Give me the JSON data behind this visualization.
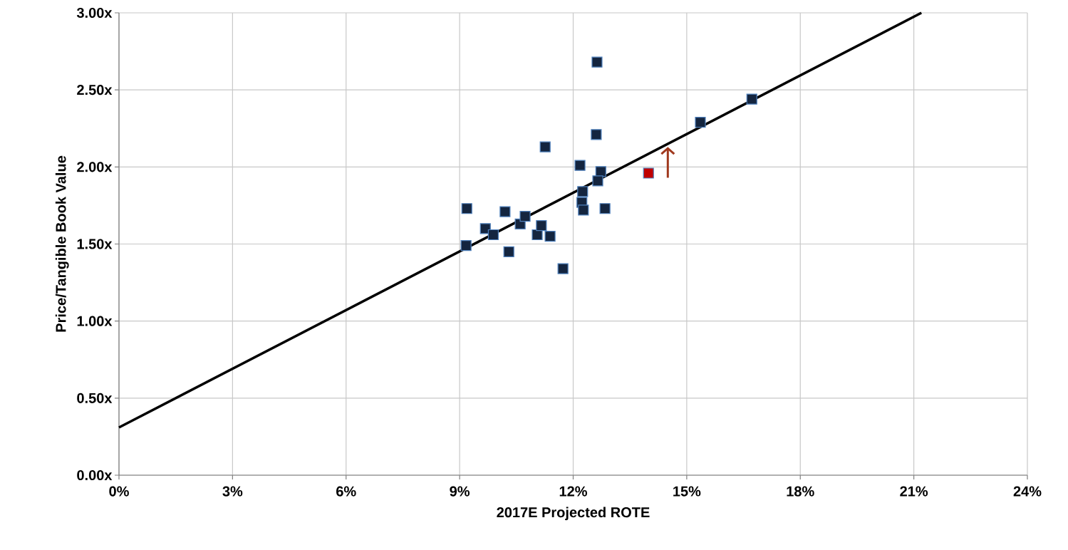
{
  "chart_data": {
    "type": "scatter",
    "xlabel": "2017E  Projected ROTE",
    "ylabel": "Price/Tangible  Book Value",
    "xlim": [
      0,
      24
    ],
    "xticks": [
      {
        "value": 0,
        "label": "0%"
      },
      {
        "value": 3,
        "label": "3%"
      },
      {
        "value": 6,
        "label": "6%"
      },
      {
        "value": 9,
        "label": "9%"
      },
      {
        "value": 12,
        "label": "12%"
      },
      {
        "value": 15,
        "label": "15%"
      },
      {
        "value": 18,
        "label": "18%"
      },
      {
        "value": 21,
        "label": "21%"
      },
      {
        "value": 24,
        "label": "24%"
      }
    ],
    "ylim": [
      0,
      3
    ],
    "yticks": [
      {
        "value": 0,
        "label": "0.00x"
      },
      {
        "value": 0.5,
        "label": "0.50x"
      },
      {
        "value": 1,
        "label": "1.00x"
      },
      {
        "value": 1.5,
        "label": "1.50x"
      },
      {
        "value": 2,
        "label": "2.00x"
      },
      {
        "value": 2.5,
        "label": "2.50x"
      },
      {
        "value": 3,
        "label": "3.00x"
      }
    ],
    "grid": true,
    "series": [
      {
        "marker": "square",
        "color": "#14253f",
        "x": [
          9.19,
          9.17,
          9.68,
          9.89,
          10.2,
          10.3,
          10.6,
          10.73,
          11.05,
          11.16,
          11.39,
          11.73,
          11.26,
          12.18,
          12.23,
          12.25,
          12.27,
          12.63,
          12.61,
          12.73,
          12.65,
          12.84,
          15.36,
          16.72
        ],
        "values": [
          1.73,
          1.49,
          1.6,
          1.56,
          1.71,
          1.45,
          1.63,
          1.68,
          1.56,
          1.62,
          1.55,
          1.34,
          2.13,
          2.01,
          1.77,
          1.84,
          1.72,
          2.68,
          2.21,
          1.97,
          1.91,
          1.73,
          2.29,
          2.44
        ]
      },
      {
        "marker": "square",
        "color": "#c00000",
        "x": [
          13.99
        ],
        "values": [
          1.96
        ]
      },
      {
        "type": "line",
        "marker": "none",
        "color": "#000000",
        "x": [
          0,
          21.2
        ],
        "values": [
          0.31,
          3.0
        ]
      }
    ]
  }
}
